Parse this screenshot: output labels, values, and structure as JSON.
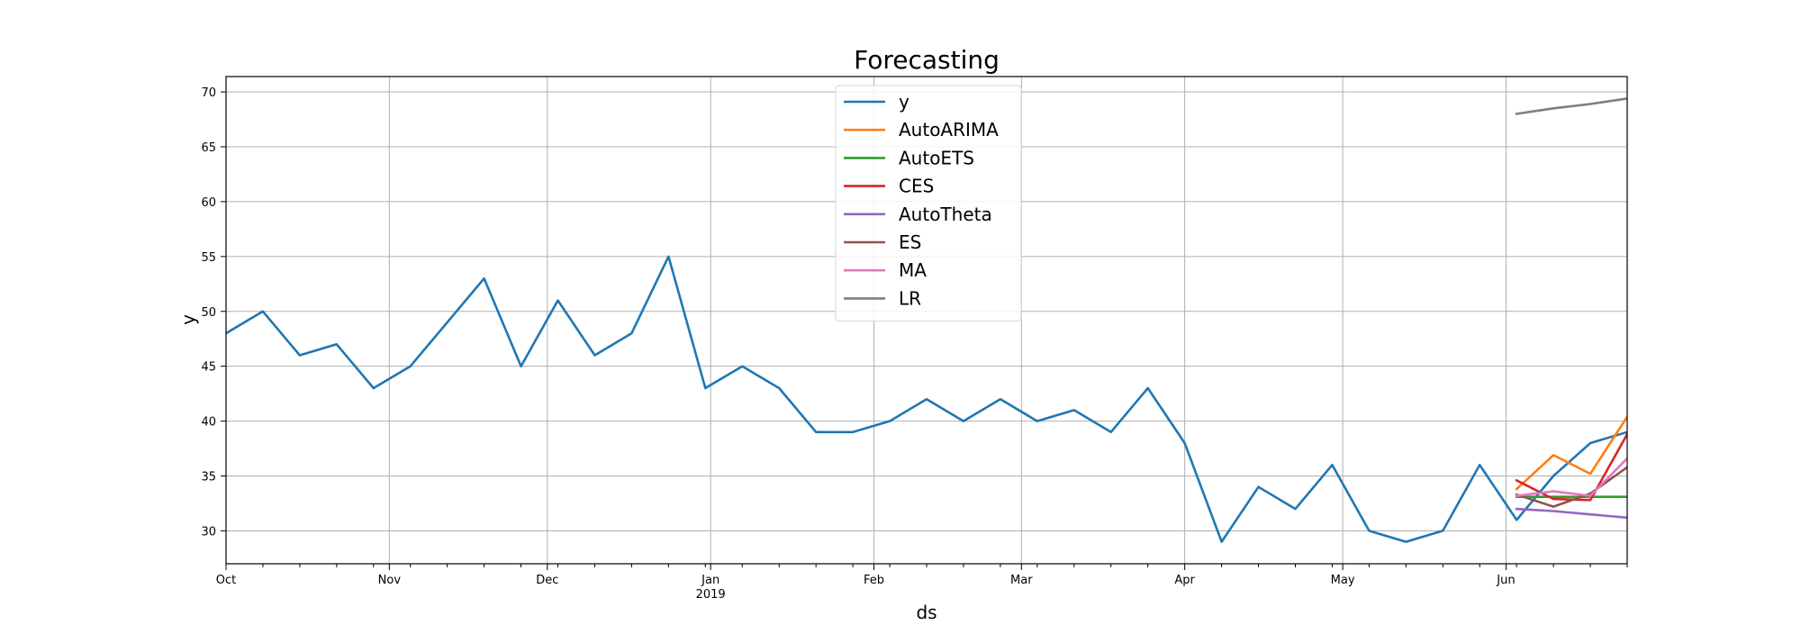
{
  "chart_data": {
    "type": "line",
    "title": "Forecasting",
    "xlabel": "ds",
    "ylabel": "y",
    "ylim": [
      27,
      71.4
    ],
    "y_ticks": [
      30,
      35,
      40,
      45,
      50,
      55,
      60,
      65,
      70
    ],
    "x_range": [
      "2018-10-01",
      "2019-06-24"
    ],
    "x_ticks": [
      {
        "date": "2018-10-01",
        "label": "Oct",
        "sub": ""
      },
      {
        "date": "2018-11-01",
        "label": "Nov",
        "sub": ""
      },
      {
        "date": "2018-12-01",
        "label": "Dec",
        "sub": ""
      },
      {
        "date": "2019-01-01",
        "label": "Jan",
        "sub": "2019"
      },
      {
        "date": "2019-02-01",
        "label": "Feb",
        "sub": ""
      },
      {
        "date": "2019-03-01",
        "label": "Mar",
        "sub": ""
      },
      {
        "date": "2019-04-01",
        "label": "Apr",
        "sub": ""
      },
      {
        "date": "2019-05-01",
        "label": "May",
        "sub": ""
      },
      {
        "date": "2019-06-01",
        "label": "Jun",
        "sub": ""
      }
    ],
    "grid": true,
    "legend_position": "upper-center",
    "series": [
      {
        "name": "y",
        "color": "#1f77b4",
        "x": [
          "2018-10-01",
          "2018-10-08",
          "2018-10-15",
          "2018-10-22",
          "2018-10-29",
          "2018-11-05",
          "2018-11-12",
          "2018-11-19",
          "2018-11-26",
          "2018-12-03",
          "2018-12-10",
          "2018-12-17",
          "2018-12-24",
          "2018-12-31",
          "2019-01-07",
          "2019-01-14",
          "2019-01-21",
          "2019-01-28",
          "2019-02-04",
          "2019-02-11",
          "2019-02-18",
          "2019-02-25",
          "2019-03-04",
          "2019-03-11",
          "2019-03-18",
          "2019-03-25",
          "2019-04-01",
          "2019-04-08",
          "2019-04-15",
          "2019-04-22",
          "2019-04-29",
          "2019-05-06",
          "2019-05-13",
          "2019-05-20",
          "2019-05-27",
          "2019-06-03",
          "2019-06-10",
          "2019-06-17",
          "2019-06-24"
        ],
        "y": [
          48,
          50,
          46,
          47,
          43,
          45,
          49,
          53,
          45,
          51,
          46,
          48,
          55,
          43,
          45,
          43,
          39,
          39,
          40,
          42,
          40,
          42,
          40,
          41,
          39,
          43,
          38,
          29,
          34,
          32,
          36,
          30,
          29,
          30,
          36,
          31,
          35,
          38,
          39
        ]
      },
      {
        "name": "AutoARIMA",
        "color": "#ff7f0e",
        "x": [
          "2019-06-03",
          "2019-06-10",
          "2019-06-17",
          "2019-06-24"
        ],
        "y": [
          33.8,
          36.9,
          35.2,
          40.4
        ]
      },
      {
        "name": "AutoETS",
        "color": "#2ca02c",
        "x": [
          "2019-06-03",
          "2019-06-10",
          "2019-06-17",
          "2019-06-24"
        ],
        "y": [
          33.1,
          33.1,
          33.1,
          33.1
        ]
      },
      {
        "name": "CES",
        "color": "#d62728",
        "x": [
          "2019-06-03",
          "2019-06-10",
          "2019-06-17",
          "2019-06-24"
        ],
        "y": [
          34.6,
          32.9,
          32.8,
          38.8
        ]
      },
      {
        "name": "AutoTheta",
        "color": "#9467bd",
        "x": [
          "2019-06-03",
          "2019-06-10",
          "2019-06-17",
          "2019-06-24"
        ],
        "y": [
          32.0,
          31.8,
          31.5,
          31.2
        ]
      },
      {
        "name": "ES",
        "color": "#8c564b",
        "x": [
          "2019-06-03",
          "2019-06-10",
          "2019-06-17",
          "2019-06-24"
        ],
        "y": [
          33.3,
          32.2,
          33.4,
          35.8
        ]
      },
      {
        "name": "MA",
        "color": "#e377c2",
        "x": [
          "2019-06-03",
          "2019-06-10",
          "2019-06-17",
          "2019-06-24"
        ],
        "y": [
          33.2,
          33.6,
          33.2,
          36.6
        ]
      },
      {
        "name": "LR",
        "color": "#7f7f7f",
        "x": [
          "2019-06-03",
          "2019-06-10",
          "2019-06-17",
          "2019-06-24"
        ],
        "y": [
          68.0,
          68.5,
          68.9,
          69.4
        ]
      }
    ]
  }
}
